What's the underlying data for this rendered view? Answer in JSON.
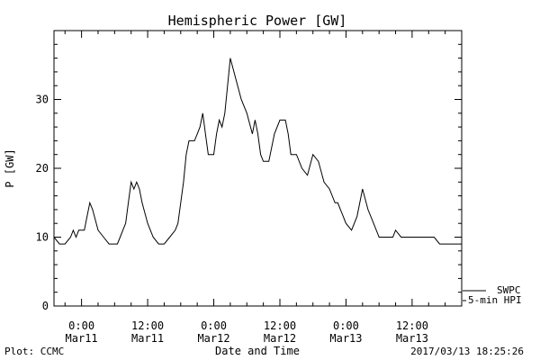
{
  "chart_data": {
    "type": "line",
    "title": "Hemispheric Power [GW]",
    "ylabel": "P [GW]",
    "xlabel": "Date and Time",
    "xlim": [
      -5,
      69
    ],
    "ylim": [
      0,
      40
    ],
    "y_ticks": [
      0,
      10,
      20,
      30
    ],
    "x_ticks": [
      {
        "t": 0,
        "line1": "0:00",
        "line2": "Mar11"
      },
      {
        "t": 12,
        "line1": "12:00",
        "line2": "Mar11"
      },
      {
        "t": 24,
        "line1": "0:00",
        "line2": "Mar12"
      },
      {
        "t": 36,
        "line1": "12:00",
        "line2": "Mar12"
      },
      {
        "t": 48,
        "line1": "0:00",
        "line2": "Mar13"
      },
      {
        "t": 60,
        "line1": "12:00",
        "line2": "Mar13"
      }
    ],
    "series": [
      {
        "name": "SWPC",
        "x": [
          -5,
          -4,
          -3,
          -2,
          -1.5,
          -1,
          -0.5,
          0,
          0.5,
          1,
          1.5,
          2,
          3,
          4,
          5,
          6,
          6.5,
          7,
          7.5,
          8,
          8.5,
          9,
          9.5,
          10,
          10.5,
          11,
          12,
          13,
          14,
          15,
          16,
          17,
          17.5,
          18,
          18.5,
          19,
          19.5,
          20,
          20.5,
          21,
          21.5,
          22,
          22.5,
          23,
          23.5,
          24,
          24.5,
          25,
          25.5,
          26,
          27,
          28,
          29,
          30,
          31,
          31.5,
          32,
          32.5,
          33,
          34,
          35,
          36,
          37,
          37.5,
          38,
          39,
          40,
          41,
          42,
          43,
          44,
          45,
          46,
          46.5,
          47,
          47.5,
          48,
          49,
          50,
          51,
          52,
          53,
          54,
          55,
          56,
          56.5,
          57,
          58,
          60,
          62,
          64,
          65,
          66,
          69
        ],
        "y": [
          10,
          9,
          9,
          10,
          11,
          10,
          11,
          11,
          11,
          13,
          15,
          14,
          11,
          10,
          9,
          9,
          9,
          10,
          11,
          12,
          15,
          18,
          17,
          18,
          17,
          15,
          12,
          10,
          9,
          9,
          10,
          11,
          12,
          15,
          18,
          22,
          24,
          24,
          24,
          25,
          26,
          28,
          25,
          22,
          22,
          22,
          25,
          27,
          26,
          28,
          36,
          33,
          30,
          28,
          25,
          27,
          25,
          22,
          21,
          21,
          25,
          27,
          27,
          25,
          22,
          22,
          20,
          19,
          22,
          21,
          18,
          17,
          15,
          15,
          14,
          13,
          12,
          11,
          13,
          17,
          14,
          12,
          10,
          10,
          10,
          10,
          11,
          10,
          10,
          10,
          10,
          9,
          9,
          9
        ]
      }
    ],
    "legend": [
      "SWPC",
      "5-min HPI"
    ],
    "legend_placement": "bottom-right outside",
    "grid": false
  },
  "footer": {
    "plot_credit": "Plot: CCMC",
    "timestamp": "2017/03/13 18:25:26"
  }
}
